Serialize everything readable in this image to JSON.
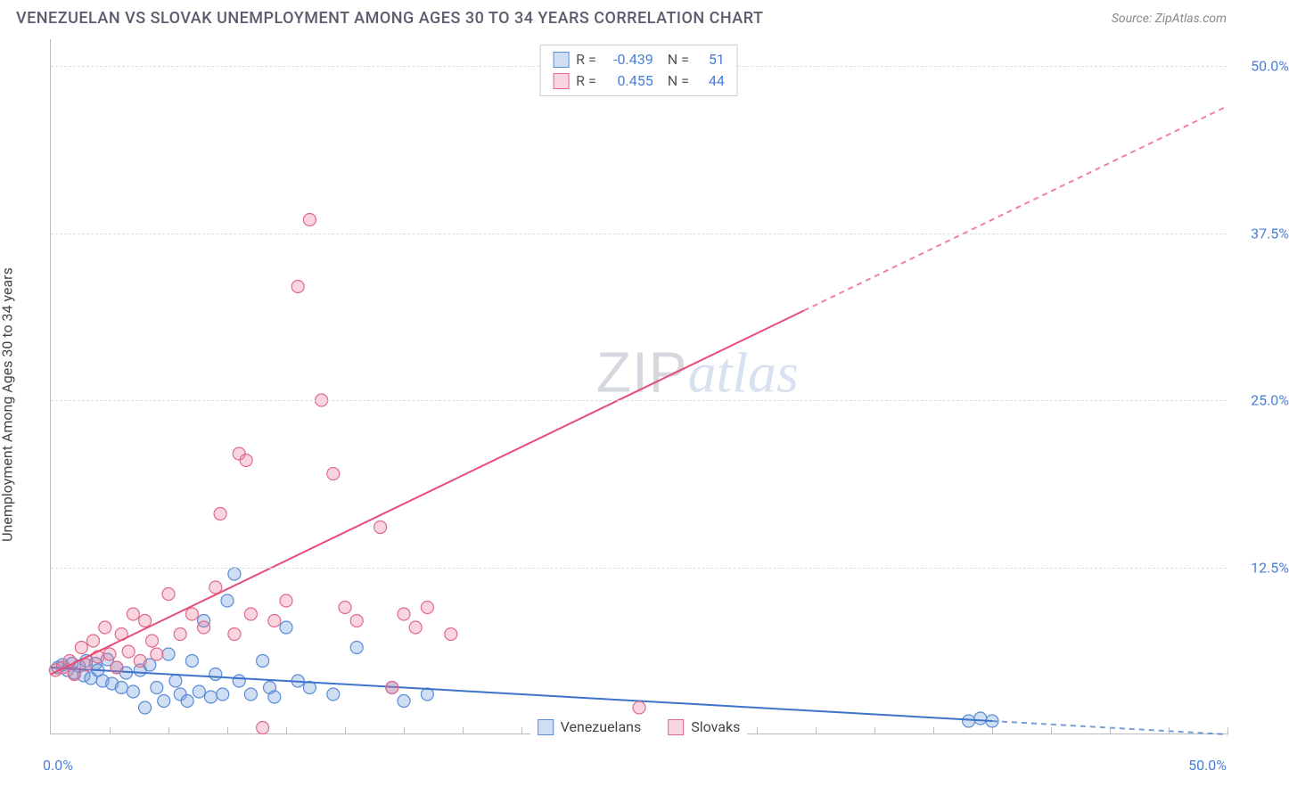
{
  "title": "VENEZUELAN VS SLOVAK UNEMPLOYMENT AMONG AGES 30 TO 34 YEARS CORRELATION CHART",
  "source": "Source: ZipAtlas.com",
  "y_axis_label": "Unemployment Among Ages 30 to 34 years",
  "x_origin_label": "0.0%",
  "x_max_label": "50.0%",
  "y_ticks": [
    {
      "v": 12.5,
      "label": "12.5%"
    },
    {
      "v": 25.0,
      "label": "25.0%"
    },
    {
      "v": 37.5,
      "label": "37.5%"
    },
    {
      "v": 50.0,
      "label": "50.0%"
    }
  ],
  "x_grid_major": [
    12.5,
    25.0,
    37.5,
    50.0
  ],
  "chart": {
    "type": "scatter",
    "xlim": [
      0,
      50
    ],
    "ylim": [
      0,
      52
    ],
    "background_color": "#ffffff",
    "grid_color": "#dddddd",
    "marker_radius": 7,
    "marker_stroke_width": 1.2,
    "line_width": 2,
    "series": [
      {
        "key": "venezuelans",
        "label": "Venezuelans",
        "color_fill": "rgba(120,160,220,0.35)",
        "color_stroke": "#5a8cd6",
        "line_color": "#3d73c9",
        "r_value": "-0.439",
        "n_value": "51",
        "trend": {
          "x1": 0,
          "y1": 5.0,
          "x2": 50,
          "y2": 0.0,
          "extrapolate_from": 40
        },
        "points": [
          [
            0.3,
            5.0
          ],
          [
            0.5,
            5.2
          ],
          [
            0.7,
            4.8
          ],
          [
            0.9,
            5.3
          ],
          [
            1.0,
            4.6
          ],
          [
            1.2,
            5.1
          ],
          [
            1.4,
            4.4
          ],
          [
            1.5,
            5.5
          ],
          [
            1.7,
            4.2
          ],
          [
            1.9,
            5.3
          ],
          [
            2.0,
            4.8
          ],
          [
            2.2,
            4.0
          ],
          [
            2.4,
            5.6
          ],
          [
            2.6,
            3.8
          ],
          [
            2.8,
            5.0
          ],
          [
            3.0,
            3.5
          ],
          [
            3.2,
            4.6
          ],
          [
            3.5,
            3.2
          ],
          [
            3.8,
            4.8
          ],
          [
            4.0,
            2.0
          ],
          [
            4.2,
            5.2
          ],
          [
            4.5,
            3.5
          ],
          [
            4.8,
            2.5
          ],
          [
            5.0,
            6.0
          ],
          [
            5.3,
            4.0
          ],
          [
            5.5,
            3.0
          ],
          [
            5.8,
            2.5
          ],
          [
            6.0,
            5.5
          ],
          [
            6.3,
            3.2
          ],
          [
            6.5,
            8.5
          ],
          [
            6.8,
            2.8
          ],
          [
            7.0,
            4.5
          ],
          [
            7.3,
            3.0
          ],
          [
            7.5,
            10.0
          ],
          [
            7.8,
            12.0
          ],
          [
            8.0,
            4.0
          ],
          [
            8.5,
            3.0
          ],
          [
            9.0,
            5.5
          ],
          [
            9.3,
            3.5
          ],
          [
            9.5,
            2.8
          ],
          [
            10.0,
            8.0
          ],
          [
            10.5,
            4.0
          ],
          [
            11.0,
            3.5
          ],
          [
            12.0,
            3.0
          ],
          [
            13.0,
            6.5
          ],
          [
            14.5,
            3.5
          ],
          [
            15.0,
            2.5
          ],
          [
            16.0,
            3.0
          ],
          [
            39.0,
            1.0
          ],
          [
            39.5,
            1.2
          ],
          [
            40.0,
            1.0
          ]
        ]
      },
      {
        "key": "slovaks",
        "label": "Slovaks",
        "color_fill": "rgba(235,120,150,0.30)",
        "color_stroke": "#e06a8c",
        "line_color": "#e84c7a",
        "r_value": "0.455",
        "n_value": "44",
        "trend": {
          "x1": 0,
          "y1": 4.5,
          "x2": 50,
          "y2": 47.0,
          "extrapolate_from": 32
        },
        "points": [
          [
            0.2,
            4.8
          ],
          [
            0.5,
            5.0
          ],
          [
            0.8,
            5.5
          ],
          [
            1.0,
            4.5
          ],
          [
            1.3,
            6.5
          ],
          [
            1.5,
            5.2
          ],
          [
            1.8,
            7.0
          ],
          [
            2.0,
            5.8
          ],
          [
            2.3,
            8.0
          ],
          [
            2.5,
            6.0
          ],
          [
            2.8,
            5.0
          ],
          [
            3.0,
            7.5
          ],
          [
            3.3,
            6.2
          ],
          [
            3.5,
            9.0
          ],
          [
            3.8,
            5.5
          ],
          [
            4.0,
            8.5
          ],
          [
            4.3,
            7.0
          ],
          [
            4.5,
            6.0
          ],
          [
            5.0,
            10.5
          ],
          [
            5.5,
            7.5
          ],
          [
            6.0,
            9.0
          ],
          [
            6.5,
            8.0
          ],
          [
            7.0,
            11.0
          ],
          [
            7.2,
            16.5
          ],
          [
            7.8,
            7.5
          ],
          [
            8.0,
            21.0
          ],
          [
            8.3,
            20.5
          ],
          [
            8.5,
            9.0
          ],
          [
            9.0,
            0.5
          ],
          [
            9.5,
            8.5
          ],
          [
            10.0,
            10.0
          ],
          [
            10.5,
            33.5
          ],
          [
            11.0,
            38.5
          ],
          [
            11.5,
            25.0
          ],
          [
            12.0,
            19.5
          ],
          [
            12.5,
            9.5
          ],
          [
            13.0,
            8.5
          ],
          [
            14.0,
            15.5
          ],
          [
            15.0,
            9.0
          ],
          [
            15.5,
            8.0
          ],
          [
            16.0,
            9.5
          ],
          [
            17.0,
            7.5
          ],
          [
            25.0,
            2.0
          ],
          [
            14.5,
            3.5
          ]
        ]
      }
    ]
  },
  "watermark": {
    "zip": "ZIP",
    "atlas": "atlas"
  },
  "legend_labels": {
    "r": "R =",
    "n": "N ="
  }
}
